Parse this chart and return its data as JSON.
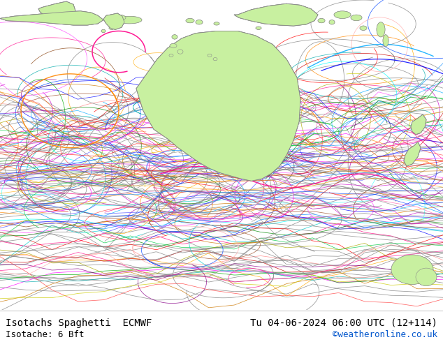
{
  "title_left": "Isotachs Spaghetti  ECMWF",
  "title_right": "Tu 04-06-2024 06:00 UTC (12+114)",
  "subtitle_left": "Isotache: 6 Bft",
  "subtitle_right": "©weatheronline.co.uk",
  "figsize": [
    6.34,
    4.9
  ],
  "dpi": 100,
  "title_fontsize": 10,
  "subtitle_fontsize": 9,
  "map_bg": "#f0f0f0",
  "land_color": "#c8f0a0",
  "land_edge": "#888888",
  "ocean_color": "#f0f0f0",
  "bottom_bg": "#ffffff",
  "text_color": "#000000",
  "link_color": "#0055cc",
  "colors": [
    "#808080",
    "#808080",
    "#808080",
    "#808080",
    "#808080",
    "#808080",
    "#808080",
    "#808080",
    "#808080",
    "#808080",
    "#ff00ff",
    "#ff0080",
    "#cc00cc",
    "#ff44ff",
    "#ff8800",
    "#ffaa00",
    "#ff6600",
    "#cc7700",
    "#0000ff",
    "#0044ff",
    "#0088ff",
    "#00aaff",
    "#4444ff",
    "#ff0000",
    "#cc0000",
    "#ff4444",
    "#00aa00",
    "#008800",
    "#00cc44",
    "#880088",
    "#aa00aa",
    "#cccc00",
    "#aaaa00",
    "#00cccc",
    "#00aaaa",
    "#ff69b4",
    "#ff1493",
    "#8b4513",
    "#a0522d",
    "#00ffff",
    "#44ffff",
    "#ff8888",
    "#ffaaaa"
  ]
}
